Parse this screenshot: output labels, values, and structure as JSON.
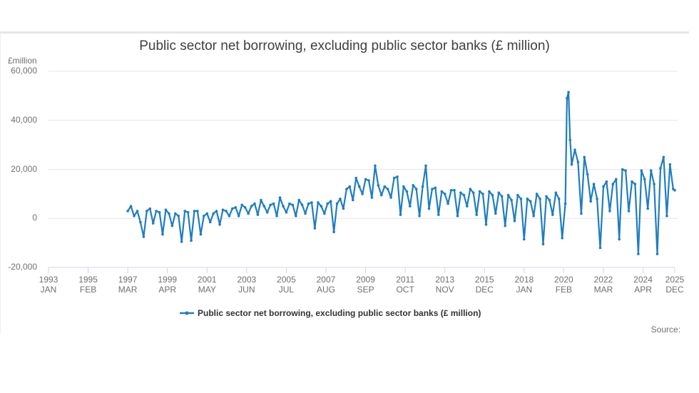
{
  "chart": {
    "title": "Public sector net borrowing, excluding public sector banks (£ million)",
    "y_unit_label": "£million",
    "legend_label": "Public sector net borrowing, excluding public sector banks (£ million)",
    "source_label": "Source:",
    "line_color": "#1f7dc1",
    "grid_color": "#e6e6e6",
    "y_ticks": [
      "60,000",
      "40,000",
      "20,000",
      "0",
      "-20,000"
    ],
    "x_ticks": [
      {
        "year": "1993",
        "month": "JAN"
      },
      {
        "year": "1995",
        "month": "FEB"
      },
      {
        "year": "1997",
        "month": "MAR"
      },
      {
        "year": "1999",
        "month": "APR"
      },
      {
        "year": "2001",
        "month": "MAY"
      },
      {
        "year": "2003",
        "month": "JUN"
      },
      {
        "year": "2005",
        "month": "JUL"
      },
      {
        "year": "2007",
        "month": "AUG"
      },
      {
        "year": "2009",
        "month": "SEP"
      },
      {
        "year": "2011",
        "month": "OCT"
      },
      {
        "year": "2013",
        "month": "NOV"
      },
      {
        "year": "2015",
        "month": "DEC"
      },
      {
        "year": "2018",
        "month": "JAN"
      },
      {
        "year": "2020",
        "month": "FEB"
      },
      {
        "year": "2022",
        "month": "MAR"
      },
      {
        "year": "2024",
        "month": "APR"
      },
      {
        "year": "2025",
        "month": "DEC"
      }
    ]
  },
  "chart_data": {
    "type": "line",
    "title": "Public sector net borrowing, excluding public sector banks (£ million)",
    "xlabel": "",
    "ylabel": "£million",
    "ylim": [
      -20000,
      60000
    ],
    "xlim": [
      "1993 JAN",
      "2025 DEC"
    ],
    "grid": true,
    "legend_position": "bottom",
    "series": [
      {
        "name": "Public sector net borrowing, excluding public sector banks (£ million)",
        "points": [
          [
            "1997-03",
            3000
          ],
          [
            "1997-05",
            5000
          ],
          [
            "1997-07",
            1000
          ],
          [
            "1997-09",
            3000
          ],
          [
            "1997-11",
            -1500
          ],
          [
            "1998-01",
            -7500
          ],
          [
            "1998-03",
            3000
          ],
          [
            "1998-05",
            4000
          ],
          [
            "1998-07",
            -2000
          ],
          [
            "1998-09",
            3000
          ],
          [
            "1998-11",
            2500
          ],
          [
            "1999-01",
            -6500
          ],
          [
            "1999-03",
            3500
          ],
          [
            "1999-05",
            2000
          ],
          [
            "1999-07",
            -3000
          ],
          [
            "1999-09",
            2000
          ],
          [
            "1999-11",
            1000
          ],
          [
            "2000-01",
            -9500
          ],
          [
            "2000-03",
            3000
          ],
          [
            "2000-05",
            2500
          ],
          [
            "2000-07",
            -9000
          ],
          [
            "2000-09",
            3000
          ],
          [
            "2000-11",
            3000
          ],
          [
            "2001-01",
            -6500
          ],
          [
            "2001-03",
            1000
          ],
          [
            "2001-05",
            2000
          ],
          [
            "2001-07",
            -1500
          ],
          [
            "2001-09",
            2000
          ],
          [
            "2001-11",
            3000
          ],
          [
            "2002-01",
            -2500
          ],
          [
            "2002-03",
            3500
          ],
          [
            "2002-05",
            3000
          ],
          [
            "2002-07",
            1000
          ],
          [
            "2002-09",
            4000
          ],
          [
            "2002-11",
            4500
          ],
          [
            "2003-01",
            1000
          ],
          [
            "2003-03",
            5500
          ],
          [
            "2003-05",
            4500
          ],
          [
            "2003-07",
            2000
          ],
          [
            "2003-09",
            5000
          ],
          [
            "2003-11",
            6000
          ],
          [
            "2004-01",
            1500
          ],
          [
            "2004-03",
            7500
          ],
          [
            "2004-05",
            5000
          ],
          [
            "2004-07",
            2500
          ],
          [
            "2004-09",
            5500
          ],
          [
            "2004-11",
            6000
          ],
          [
            "2005-01",
            1000
          ],
          [
            "2005-03",
            8500
          ],
          [
            "2005-05",
            5000
          ],
          [
            "2005-07",
            2500
          ],
          [
            "2005-09",
            6000
          ],
          [
            "2005-11",
            5500
          ],
          [
            "2006-01",
            1000
          ],
          [
            "2006-03",
            7500
          ],
          [
            "2006-05",
            5500
          ],
          [
            "2006-07",
            2000
          ],
          [
            "2006-09",
            6000
          ],
          [
            "2006-11",
            6500
          ],
          [
            "2007-01",
            -4000
          ],
          [
            "2007-03",
            6500
          ],
          [
            "2007-05",
            5000
          ],
          [
            "2007-07",
            2000
          ],
          [
            "2007-09",
            6000
          ],
          [
            "2007-11",
            7000
          ],
          [
            "2008-01",
            -5500
          ],
          [
            "2008-03",
            6000
          ],
          [
            "2008-05",
            8000
          ],
          [
            "2008-07",
            4000
          ],
          [
            "2008-09",
            12000
          ],
          [
            "2008-11",
            13000
          ],
          [
            "2009-01",
            7500
          ],
          [
            "2009-03",
            16500
          ],
          [
            "2009-05",
            13000
          ],
          [
            "2009-07",
            10000
          ],
          [
            "2009-09",
            16000
          ],
          [
            "2009-11",
            15500
          ],
          [
            "2010-01",
            8500
          ],
          [
            "2010-03",
            21500
          ],
          [
            "2010-05",
            13500
          ],
          [
            "2010-07",
            9500
          ],
          [
            "2010-09",
            13000
          ],
          [
            "2010-11",
            12000
          ],
          [
            "2011-01",
            8500
          ],
          [
            "2011-03",
            16500
          ],
          [
            "2011-05",
            17000
          ],
          [
            "2011-07",
            1500
          ],
          [
            "2011-09",
            13000
          ],
          [
            "2011-11",
            11000
          ],
          [
            "2012-01",
            5000
          ],
          [
            "2012-03",
            13500
          ],
          [
            "2012-05",
            12000
          ],
          [
            "2012-07",
            1000
          ],
          [
            "2012-09",
            13000
          ],
          [
            "2012-11",
            21500
          ],
          [
            "2013-01",
            4000
          ],
          [
            "2013-03",
            12000
          ],
          [
            "2013-05",
            12500
          ],
          [
            "2013-07",
            1500
          ],
          [
            "2013-09",
            11000
          ],
          [
            "2013-11",
            10000
          ],
          [
            "2014-01",
            6000
          ],
          [
            "2014-03",
            11500
          ],
          [
            "2014-05",
            11500
          ],
          [
            "2014-07",
            1000
          ],
          [
            "2014-09",
            10500
          ],
          [
            "2014-11",
            9500
          ],
          [
            "2015-01",
            5000
          ],
          [
            "2015-03",
            12000
          ],
          [
            "2015-05",
            10500
          ],
          [
            "2015-07",
            1500
          ],
          [
            "2015-09",
            11000
          ],
          [
            "2015-11",
            10000
          ],
          [
            "2016-01",
            -2500
          ],
          [
            "2016-03",
            11000
          ],
          [
            "2016-05",
            9500
          ],
          [
            "2016-07",
            2000
          ],
          [
            "2016-09",
            10500
          ],
          [
            "2016-11",
            9000
          ],
          [
            "2017-01",
            -3000
          ],
          [
            "2017-03",
            9500
          ],
          [
            "2017-05",
            7500
          ],
          [
            "2017-07",
            -1000
          ],
          [
            "2017-09",
            9500
          ],
          [
            "2017-11",
            8000
          ],
          [
            "2018-01",
            -8500
          ],
          [
            "2018-03",
            8000
          ],
          [
            "2018-05",
            7000
          ],
          [
            "2018-07",
            1000
          ],
          [
            "2018-09",
            10000
          ],
          [
            "2018-11",
            8000
          ],
          [
            "2019-01",
            -10500
          ],
          [
            "2019-03",
            9000
          ],
          [
            "2019-05",
            7500
          ],
          [
            "2019-07",
            1500
          ],
          [
            "2019-09",
            10500
          ],
          [
            "2019-11",
            8000
          ],
          [
            "2020-01",
            -8000
          ],
          [
            "2020-03",
            6000
          ],
          [
            "2020-04",
            49000
          ],
          [
            "2020-05",
            51500
          ],
          [
            "2020-06",
            32000
          ],
          [
            "2020-07",
            22000
          ],
          [
            "2020-09",
            28000
          ],
          [
            "2020-11",
            23000
          ],
          [
            "2021-01",
            2000
          ],
          [
            "2021-03",
            25000
          ],
          [
            "2021-05",
            18000
          ],
          [
            "2021-07",
            7000
          ],
          [
            "2021-09",
            14000
          ],
          [
            "2021-11",
            8000
          ],
          [
            "2022-01",
            -12000
          ],
          [
            "2022-03",
            13000
          ],
          [
            "2022-05",
            15000
          ],
          [
            "2022-07",
            3000
          ],
          [
            "2022-09",
            14000
          ],
          [
            "2022-11",
            16000
          ],
          [
            "2023-01",
            -8500
          ],
          [
            "2023-03",
            20000
          ],
          [
            "2023-05",
            19500
          ],
          [
            "2023-07",
            3000
          ],
          [
            "2023-09",
            15000
          ],
          [
            "2023-11",
            14000
          ],
          [
            "2024-01",
            -14500
          ],
          [
            "2024-03",
            19500
          ],
          [
            "2024-05",
            16000
          ],
          [
            "2024-07",
            4000
          ],
          [
            "2024-09",
            19500
          ],
          [
            "2024-11",
            14000
          ],
          [
            "2025-01",
            -14500
          ],
          [
            "2025-03",
            20500
          ],
          [
            "2025-05",
            25000
          ],
          [
            "2025-07",
            1000
          ],
          [
            "2025-09",
            22000
          ],
          [
            "2025-11",
            12000
          ],
          [
            "2025-12",
            11500
          ]
        ]
      }
    ]
  }
}
